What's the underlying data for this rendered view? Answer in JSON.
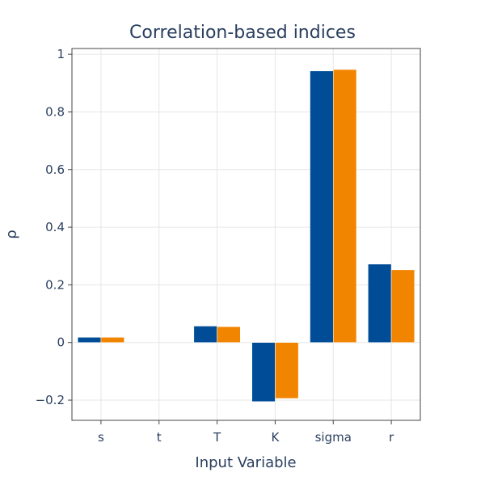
{
  "chart_data": {
    "type": "bar",
    "title": "Correlation-based indices",
    "xlabel": "Input Variable",
    "ylabel": "ρ",
    "categories": [
      "s",
      "t",
      "T",
      "K",
      "sigma",
      "r"
    ],
    "series": [
      {
        "name": "",
        "color": "#004c97",
        "values": [
          0.018,
          0.0,
          0.057,
          -0.205,
          0.942,
          0.272
        ]
      },
      {
        "name": "",
        "color": "#f28500",
        "values": [
          0.018,
          0.0,
          0.055,
          -0.194,
          0.947,
          0.252
        ]
      }
    ],
    "ylim": [
      -0.27,
      1.02
    ],
    "yticks": [
      -0.2,
      0,
      0.2,
      0.4,
      0.6,
      0.8,
      1
    ],
    "ytick_labels": [
      "−0.2",
      "0",
      "0.2",
      "0.4",
      "0.6",
      "0.8",
      "1"
    ],
    "grid": true,
    "legend": "none"
  }
}
